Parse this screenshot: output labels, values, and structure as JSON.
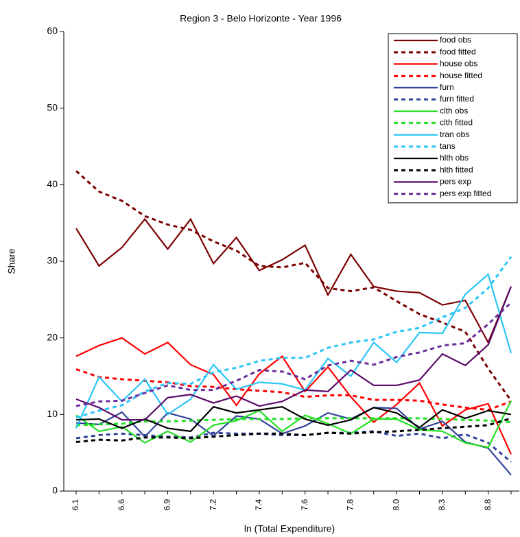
{
  "chart_data": {
    "type": "line",
    "title": "Region 3 - Belo Horizonte - Year 1996",
    "x_label": "ln (Total Expenditure)",
    "y_label": "Share",
    "categories": [
      "6.1",
      null,
      "6.6",
      null,
      "6.9",
      null,
      "7.2",
      null,
      "7.4",
      null,
      "7.6",
      null,
      "7.8",
      null,
      "8.0",
      null,
      "8.3",
      null,
      "8.8",
      null
    ],
    "ylim": [
      0,
      60
    ],
    "yticks": [
      0,
      10,
      20,
      30,
      40,
      50,
      60
    ],
    "legend": "top-right",
    "series": [
      {
        "name": "food obs",
        "color": "#7b0000",
        "style": "solid",
        "values": [
          34.3,
          29.4,
          31.8,
          35.5,
          31.6,
          35.5,
          29.7,
          33.1,
          28.8,
          30.2,
          32.1,
          25.6,
          30.9,
          26.7,
          26.1,
          25.9,
          24.3,
          24.9,
          19.4,
          26.7
        ]
      },
      {
        "name": "food fitted",
        "color": "#7b0000",
        "style": "dashed",
        "values": [
          41.8,
          39.1,
          37.9,
          35.9,
          34.8,
          34.1,
          32.6,
          31.4,
          29.4,
          29.2,
          29.8,
          26.5,
          26.1,
          26.6,
          24.8,
          23.1,
          22.0,
          20.8,
          16.0,
          11.8
        ]
      },
      {
        "name": "house obs",
        "color": "#ff0000",
        "style": "solid",
        "values": [
          17.6,
          19.0,
          20.0,
          17.9,
          19.4,
          16.5,
          15.2,
          11.2,
          15.3,
          17.6,
          13.0,
          16.2,
          12.3,
          9.0,
          11.3,
          14.1,
          8.5,
          10.6,
          11.4,
          4.8
        ]
      },
      {
        "name": "house fitted",
        "color": "#ff0000",
        "style": "dashed",
        "values": [
          15.9,
          14.9,
          14.6,
          14.4,
          14.2,
          13.7,
          13.6,
          13.3,
          13.1,
          12.9,
          12.3,
          12.5,
          12.5,
          11.9,
          11.9,
          11.8,
          11.3,
          10.9,
          10.6,
          11.7
        ]
      },
      {
        "name": "furn",
        "color": "#33439a",
        "style": "solid",
        "values": [
          8.9,
          8.7,
          10.3,
          7.1,
          10.2,
          9.4,
          7.2,
          9.8,
          9.4,
          7.5,
          8.5,
          10.2,
          9.4,
          10.9,
          10.8,
          8.1,
          9.1,
          6.4,
          5.6,
          2.1
        ]
      },
      {
        "name": "furn fitted",
        "color": "#33439a",
        "style": "dashed",
        "values": [
          6.9,
          7.3,
          7.5,
          7.3,
          7.1,
          7.0,
          7.6,
          7.5,
          7.5,
          7.3,
          7.3,
          7.6,
          7.6,
          7.8,
          7.2,
          7.5,
          6.9,
          7.4,
          6.3,
          3.8
        ]
      },
      {
        "name": "clth obs",
        "color": "#22e022",
        "style": "solid",
        "values": [
          9.9,
          7.8,
          8.4,
          6.3,
          7.8,
          6.4,
          8.6,
          9.2,
          10.5,
          7.8,
          9.9,
          8.8,
          7.5,
          9.4,
          9.4,
          8.0,
          7.8,
          6.3,
          5.7,
          11.8
        ]
      },
      {
        "name": "clth fitted",
        "color": "#22e022",
        "style": "dashed",
        "values": [
          8.6,
          8.7,
          8.8,
          9.1,
          9.1,
          9.2,
          9.3,
          9.4,
          9.4,
          9.4,
          9.5,
          9.5,
          9.5,
          9.5,
          9.5,
          9.5,
          9.4,
          9.3,
          9.2,
          9.0
        ]
      },
      {
        "name": "tran obs",
        "color": "#29c5f6",
        "style": "solid",
        "values": [
          8.2,
          14.9,
          11.7,
          14.6,
          10.0,
          12.0,
          16.5,
          13.3,
          14.2,
          14.0,
          13.2,
          17.3,
          15.0,
          19.4,
          16.8,
          20.7,
          20.6,
          25.7,
          28.3,
          18.0
        ]
      },
      {
        "name": "tans",
        "color": "#29c5f6",
        "style": "dashed",
        "values": [
          9.6,
          10.5,
          11.2,
          13.0,
          14.1,
          14.0,
          15.5,
          16.1,
          17.0,
          17.4,
          17.4,
          18.7,
          19.4,
          19.8,
          20.8,
          21.3,
          22.7,
          23.9,
          26.5,
          30.6
        ]
      },
      {
        "name": "hlth obs",
        "color": "#000000",
        "style": "solid",
        "values": [
          9.3,
          9.4,
          8.2,
          9.4,
          8.2,
          7.8,
          11.0,
          10.2,
          10.6,
          11.0,
          9.4,
          8.6,
          9.3,
          10.9,
          10.2,
          8.3,
          10.6,
          9.5,
          10.5,
          10.0
        ]
      },
      {
        "name": "hlth fitted",
        "color": "#000000",
        "style": "dashed",
        "values": [
          6.4,
          6.7,
          6.6,
          7.0,
          7.0,
          6.9,
          7.1,
          7.3,
          7.5,
          7.5,
          7.3,
          7.6,
          7.5,
          7.7,
          7.8,
          8.0,
          8.2,
          8.4,
          8.6,
          9.5
        ]
      },
      {
        "name": "pers exp",
        "color": "#5a0a6a",
        "style": "solid",
        "values": [
          12.0,
          10.9,
          9.3,
          9.3,
          12.2,
          12.6,
          11.5,
          12.4,
          11.1,
          11.7,
          13.2,
          13.0,
          15.8,
          13.8,
          13.8,
          14.5,
          17.9,
          16.4,
          19.1,
          26.7
        ]
      },
      {
        "name": "pers exp fitted",
        "color": "#6b2b9a",
        "style": "dashed",
        "values": [
          11.1,
          11.7,
          11.8,
          12.8,
          13.8,
          13.2,
          13.2,
          14.4,
          15.8,
          15.6,
          14.6,
          16.4,
          17.0,
          16.5,
          17.5,
          18.1,
          19.0,
          19.3,
          21.8,
          24.6
        ]
      }
    ]
  }
}
